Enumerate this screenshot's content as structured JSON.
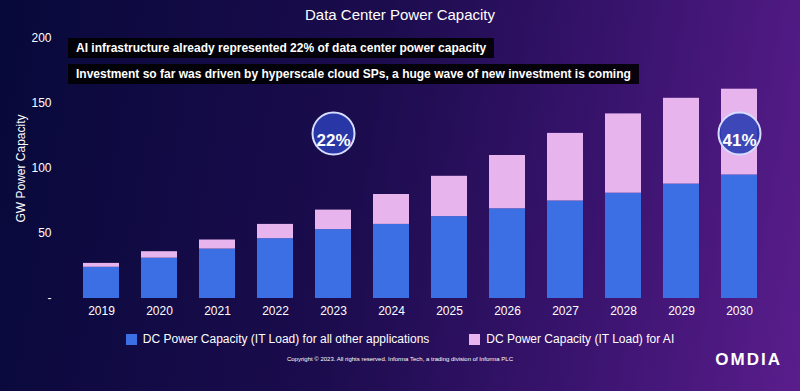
{
  "chart_data": {
    "type": "bar",
    "stacked": true,
    "title": "Data Center Power Capacity",
    "y_label": "GW Power Capacity",
    "categories": [
      "2019",
      "2020",
      "2021",
      "2022",
      "2023",
      "2024",
      "2025",
      "2026",
      "2027",
      "2028",
      "2029",
      "2030"
    ],
    "series": [
      {
        "name": "DC Power Capacity (IT Load) for all other applications",
        "color": "#3b6fe3",
        "values": [
          24,
          31,
          38,
          46,
          53,
          57,
          63,
          69,
          75,
          81,
          88,
          95
        ]
      },
      {
        "name": "DC Power Capacity (IT Load) for AI",
        "color": "#e8b4ee",
        "values": [
          3,
          5,
          7,
          11,
          15,
          23,
          31,
          41,
          52,
          61,
          66,
          66
        ]
      }
    ],
    "ylim": [
      0,
      200
    ],
    "yticks": [
      {
        "value": 0,
        "label": "-"
      },
      50,
      100,
      150,
      200
    ],
    "grid": false,
    "legend": "bottom",
    "annotations": [
      {
        "text": "AI infrastructure already represented 22% of data center power capacity"
      },
      {
        "text": "Investment so far was driven by hyperscale cloud SPs, a huge wave of new investment is coming"
      }
    ],
    "callouts": [
      {
        "category": "2023",
        "text": "22%"
      },
      {
        "category": "2030",
        "text": "41%"
      }
    ],
    "footer": "Copyright © 2023. All rights reserved.  Informa Tech, a trading division of Informa PLC",
    "logo": "OMDIA"
  }
}
